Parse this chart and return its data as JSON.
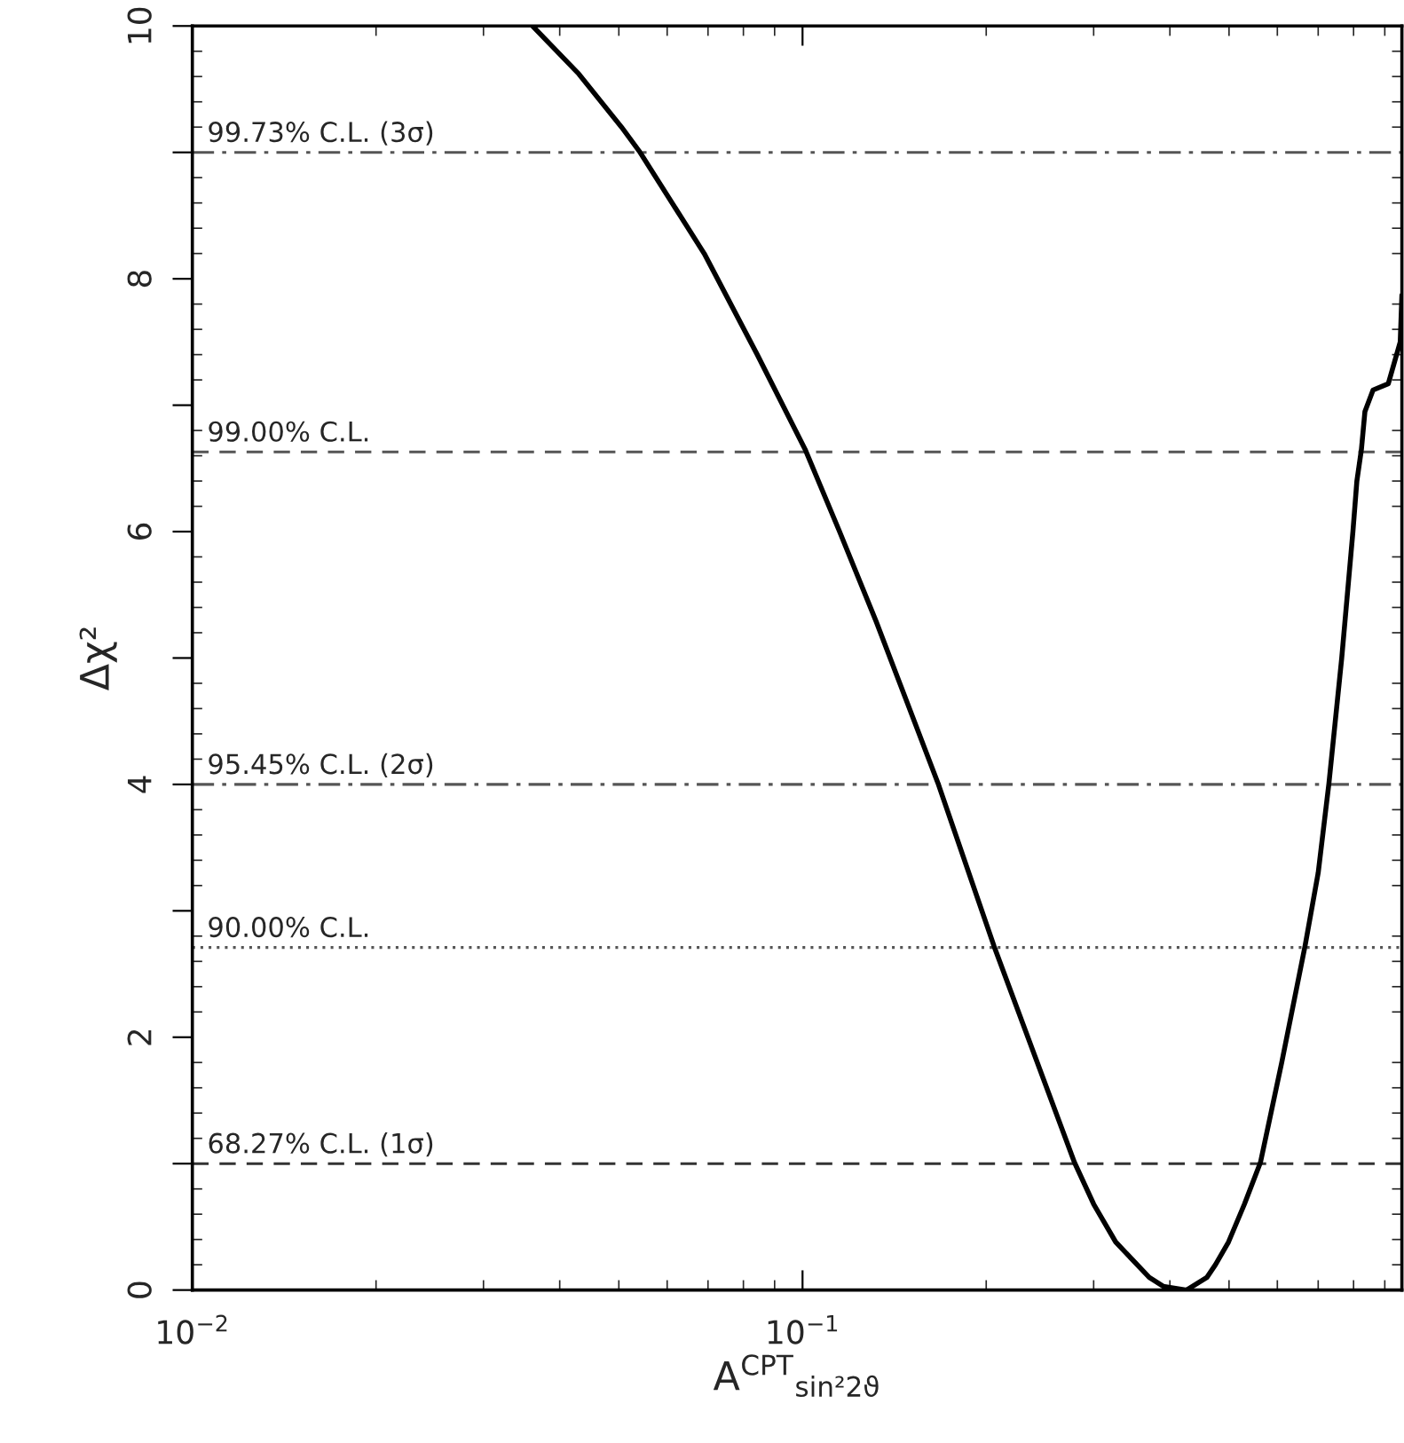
{
  "chart_data": {
    "type": "line",
    "xlabel": "A$^{CPT}$$_{sin²2ϑ}$",
    "ylabel": "Δχ²",
    "log": "x",
    "marker": "none",
    "line_style": "solid",
    "grid": false,
    "legend": false,
    "xlim": [
      0.01,
      0.96
    ],
    "xticks": [
      {
        "value": 0.01,
        "label": "10$^{−2}$"
      },
      {
        "value": 0.1,
        "label": "10$^{−1}$"
      }
    ],
    "ylim": [
      0,
      10
    ],
    "yticks": [
      0,
      {
        "value": 1,
        "label": null
      },
      2,
      {
        "value": 3,
        "label": null
      },
      4,
      {
        "value": 5,
        "label": null
      },
      6,
      {
        "value": 7,
        "label": null
      },
      8,
      {
        "value": 9,
        "label": null
      },
      10
    ],
    "series": [
      {
        "color": "#000000",
        "x": [
          0.0361,
          0.043,
          0.0505,
          0.054,
          0.069,
          0.0843,
          0.101,
          0.115,
          0.132,
          0.1667,
          0.206,
          0.279,
          0.3,
          0.326,
          0.37,
          0.39,
          0.426,
          0.46,
          0.475,
          0.499,
          0.53,
          0.563,
          0.61,
          0.666,
          0.7,
          0.729,
          0.765,
          0.798,
          0.81,
          0.824,
          0.835,
          0.861,
          0.912,
          0.954,
          0.96
        ],
        "values": [
          10,
          9.62,
          9.2,
          9.01,
          8.2,
          7.4,
          6.65,
          6.0,
          5.29,
          4.01,
          2.72,
          1.01,
          0.68,
          0.38,
          0.1,
          0.03,
          0,
          0.1,
          0.2,
          0.38,
          0.68,
          1.01,
          1.8,
          2.72,
          3.3,
          4.01,
          5.0,
          6.0,
          6.4,
          6.65,
          6.95,
          7.12,
          7.17,
          7.5,
          7.87
        ]
      }
    ],
    "ref_lines": [
      {
        "axis": "y",
        "value": 9,
        "label": "99.73% C.L. (3σ)",
        "color": "#555555",
        "line_style": "dashdot"
      },
      {
        "axis": "y",
        "value": 6.63,
        "label": "99.00% C.L.",
        "color": "#555555",
        "line_style": "dashed"
      },
      {
        "axis": "y",
        "value": 4,
        "label": "95.45% C.L. (2σ)",
        "color": "#555555",
        "line_style": "dashdot"
      },
      {
        "axis": "y",
        "value": 2.71,
        "label": "90.00% C.L.",
        "color": "#555555",
        "line_style": "dotted"
      },
      {
        "axis": "y",
        "value": 1,
        "label": "68.27% C.L. (1σ)",
        "color": "#333333",
        "line_style": "dashed"
      }
    ]
  }
}
